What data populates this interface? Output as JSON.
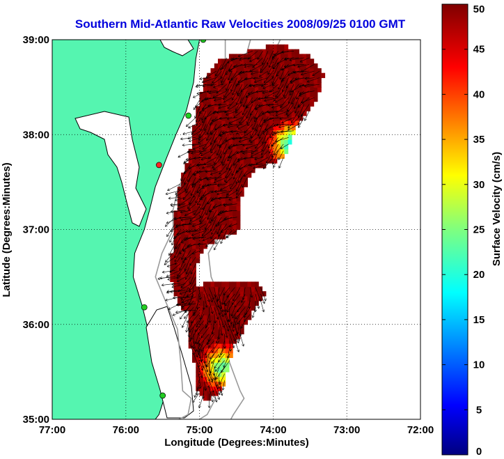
{
  "title": "Southern Mid-Atlantic Raw Velocities 2008/09/25 0100 GMT",
  "xlabel": "Longitude (Degrees:Minutes)",
  "ylabel": "Latitude (Degrees:Minutes)",
  "colorbar_label": "Surface Velocity (cm/s)",
  "colors": {
    "title": "#0000dd",
    "land": "#55f5b0",
    "ocean": "#ffffff",
    "bathymetry": "#999999",
    "arrows": "#000000",
    "grid": "#000000",
    "site_marker": "#22cc22",
    "site_marker_red": "#ff2222"
  },
  "chart_data": {
    "type": "heatmap",
    "projection": "lon-lat",
    "xlim": [
      -77,
      -72
    ],
    "ylim": [
      35,
      39
    ],
    "x_ticks": [
      {
        "value": -77,
        "label": "77:00"
      },
      {
        "value": -76,
        "label": "76:00"
      },
      {
        "value": -75,
        "label": "75:00"
      },
      {
        "value": -74,
        "label": "74:00"
      },
      {
        "value": -73,
        "label": "73:00"
      },
      {
        "value": -72,
        "label": "72:00"
      }
    ],
    "y_ticks": [
      {
        "value": 35,
        "label": "35:00"
      },
      {
        "value": 36,
        "label": "36:00"
      },
      {
        "value": 37,
        "label": "37:00"
      },
      {
        "value": 38,
        "label": "38:00"
      },
      {
        "value": 39,
        "label": "39:00"
      }
    ],
    "grid": "dotted",
    "colorbar": {
      "min": 0,
      "max": 50,
      "ticks": [
        0,
        5,
        10,
        15,
        20,
        25,
        30,
        35,
        40,
        45,
        50
      ],
      "colormap": "jet"
    },
    "coastline_lonlat": [
      [
        -75.0,
        39.0
      ],
      [
        -75.05,
        38.8
      ],
      [
        -75.08,
        38.55
      ],
      [
        -75.18,
        38.25
      ],
      [
        -75.32,
        38.0
      ],
      [
        -75.45,
        37.75
      ],
      [
        -75.6,
        37.45
      ],
      [
        -75.68,
        37.2
      ],
      [
        -75.75,
        37.0
      ],
      [
        -75.88,
        36.75
      ],
      [
        -75.9,
        36.5
      ],
      [
        -75.78,
        36.2
      ],
      [
        -75.7,
        35.95
      ],
      [
        -75.6,
        35.6
      ],
      [
        -75.53,
        35.3
      ],
      [
        -75.48,
        35.22
      ],
      [
        -75.55,
        35.05
      ],
      [
        -75.6,
        35.0
      ]
    ],
    "velocity_regions": [
      {
        "name": "northern",
        "outline": [
          [
            -74.7,
            38.8
          ],
          [
            -74.25,
            38.9
          ],
          [
            -73.9,
            38.95
          ],
          [
            -73.55,
            38.85
          ],
          [
            -73.3,
            38.65
          ],
          [
            -73.45,
            38.3
          ],
          [
            -73.7,
            38.05
          ],
          [
            -73.85,
            37.75
          ],
          [
            -74.3,
            37.6
          ],
          [
            -74.45,
            37.3
          ],
          [
            -74.45,
            37.0
          ],
          [
            -74.7,
            36.9
          ],
          [
            -74.9,
            36.85
          ],
          [
            -75.05,
            36.6
          ],
          [
            -75.05,
            36.3
          ],
          [
            -75.0,
            36.15
          ],
          [
            -75.25,
            36.15
          ],
          [
            -75.4,
            36.5
          ],
          [
            -75.35,
            37.0
          ],
          [
            -75.3,
            37.4
          ],
          [
            -75.15,
            37.75
          ],
          [
            -75.05,
            38.2
          ],
          [
            -74.95,
            38.55
          ]
        ],
        "speed_cm_s": 50,
        "slack_speed_cm_s": 25,
        "vector_direction": "southwest"
      },
      {
        "name": "southern",
        "outline": [
          [
            -75.15,
            36.4
          ],
          [
            -74.7,
            36.45
          ],
          [
            -74.2,
            36.45
          ],
          [
            -74.1,
            36.3
          ],
          [
            -74.3,
            36.1
          ],
          [
            -74.4,
            35.95
          ],
          [
            -74.55,
            35.75
          ],
          [
            -74.65,
            35.4
          ],
          [
            -74.75,
            35.25
          ],
          [
            -74.95,
            35.2
          ],
          [
            -75.05,
            35.3
          ],
          [
            -75.05,
            35.55
          ],
          [
            -75.15,
            35.8
          ],
          [
            -75.15,
            36.1
          ]
        ],
        "speed_cm_s": 50,
        "slack_speed_cm_s": 30,
        "vector_direction": "south"
      }
    ],
    "radar_sites": [
      {
        "lon": -74.95,
        "lat": 39.0,
        "marker": "green"
      },
      {
        "lon": -75.15,
        "lat": 38.2,
        "marker": "green"
      },
      {
        "lon": -75.55,
        "lat": 37.68,
        "marker": "red"
      },
      {
        "lon": -75.75,
        "lat": 36.18,
        "marker": "green"
      },
      {
        "lon": -75.5,
        "lat": 35.25,
        "marker": "green"
      }
    ]
  }
}
